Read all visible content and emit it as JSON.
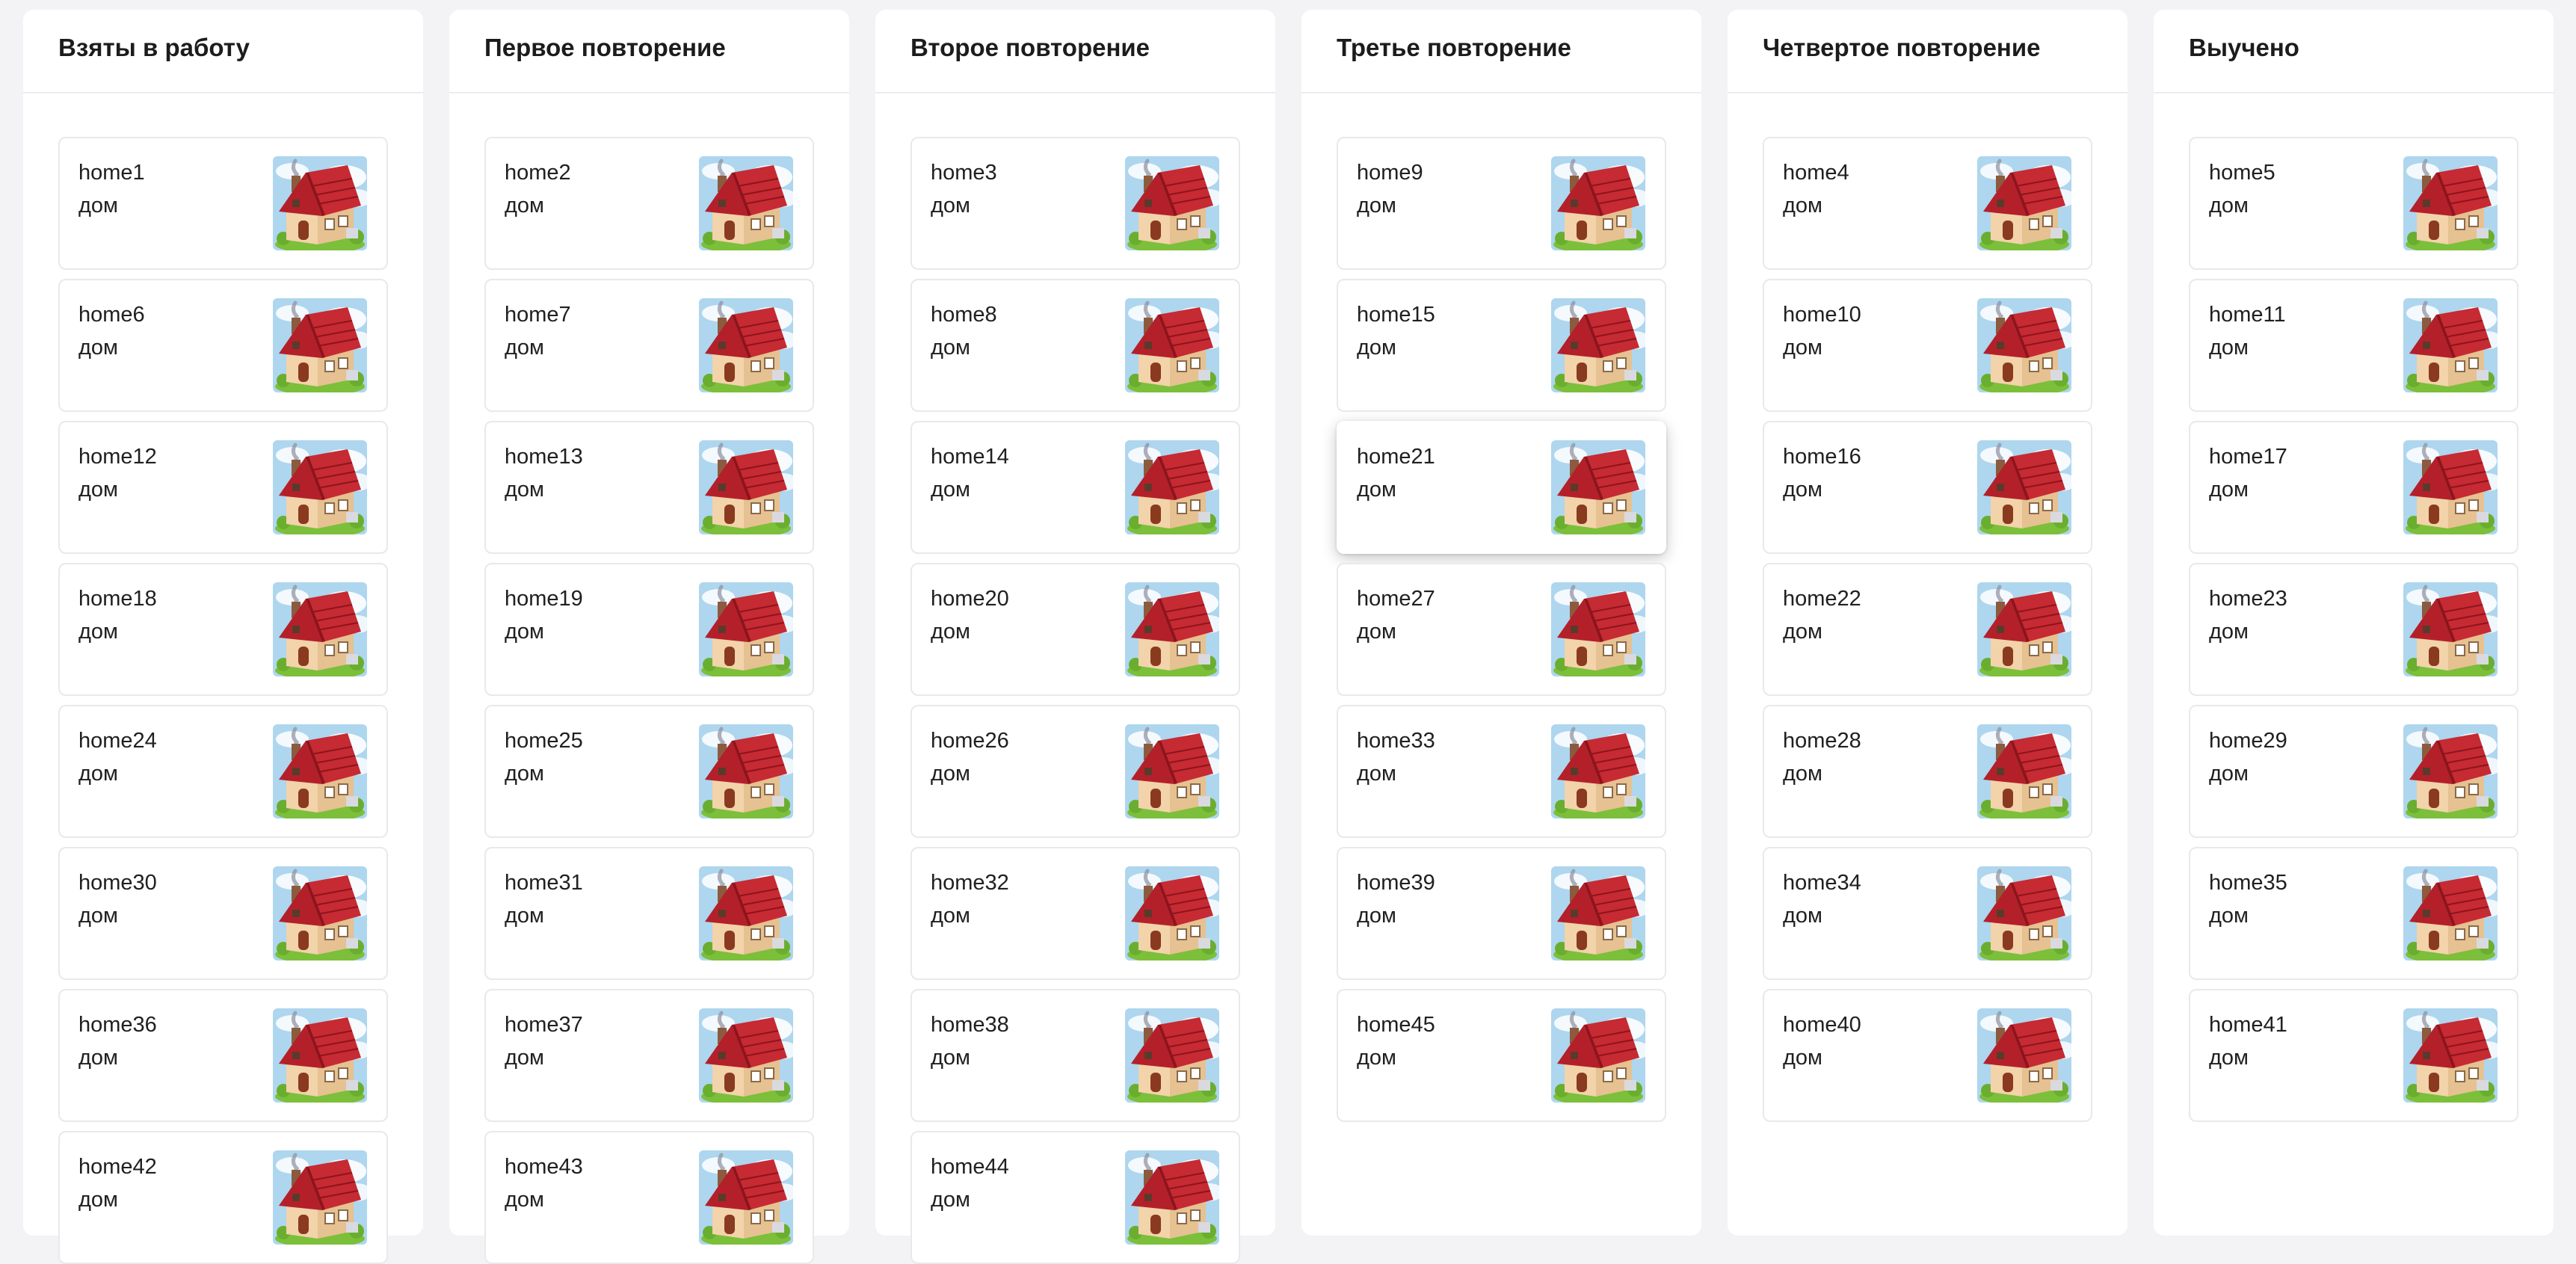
{
  "columns": [
    {
      "title": "Взяты в работу",
      "cards": [
        {
          "word": "home1",
          "translation": "дом"
        },
        {
          "word": "home6",
          "translation": "дом"
        },
        {
          "word": "home12",
          "translation": "дом"
        },
        {
          "word": "home18",
          "translation": "дом"
        },
        {
          "word": "home24",
          "translation": "дом"
        },
        {
          "word": "home30",
          "translation": "дом"
        },
        {
          "word": "home36",
          "translation": "дом"
        },
        {
          "word": "home42",
          "translation": "дом"
        }
      ]
    },
    {
      "title": "Первое повторение",
      "cards": [
        {
          "word": "home2",
          "translation": "дом"
        },
        {
          "word": "home7",
          "translation": "дом"
        },
        {
          "word": "home13",
          "translation": "дом"
        },
        {
          "word": "home19",
          "translation": "дом"
        },
        {
          "word": "home25",
          "translation": "дом"
        },
        {
          "word": "home31",
          "translation": "дом"
        },
        {
          "word": "home37",
          "translation": "дом"
        },
        {
          "word": "home43",
          "translation": "дом"
        }
      ]
    },
    {
      "title": "Второе повторение",
      "cards": [
        {
          "word": "home3",
          "translation": "дом"
        },
        {
          "word": "home8",
          "translation": "дом"
        },
        {
          "word": "home14",
          "translation": "дом"
        },
        {
          "word": "home20",
          "translation": "дом"
        },
        {
          "word": "home26",
          "translation": "дом"
        },
        {
          "word": "home32",
          "translation": "дом"
        },
        {
          "word": "home38",
          "translation": "дом"
        },
        {
          "word": "home44",
          "translation": "дом"
        }
      ]
    },
    {
      "title": "Третье повторение",
      "cards": [
        {
          "word": "home9",
          "translation": "дом"
        },
        {
          "word": "home15",
          "translation": "дом"
        },
        {
          "word": "home21",
          "translation": "дом",
          "dragging": true
        },
        {
          "word": "home27",
          "translation": "дом"
        },
        {
          "word": "home33",
          "translation": "дом"
        },
        {
          "word": "home39",
          "translation": "дом"
        },
        {
          "word": "home45",
          "translation": "дом"
        }
      ]
    },
    {
      "title": "Четвертое повторение",
      "cards": [
        {
          "word": "home4",
          "translation": "дом"
        },
        {
          "word": "home10",
          "translation": "дом"
        },
        {
          "word": "home16",
          "translation": "дом"
        },
        {
          "word": "home22",
          "translation": "дом"
        },
        {
          "word": "home28",
          "translation": "дом"
        },
        {
          "word": "home34",
          "translation": "дом"
        },
        {
          "word": "home40",
          "translation": "дом"
        }
      ]
    },
    {
      "title": "Выучено",
      "cards": [
        {
          "word": "home5",
          "translation": "дом"
        },
        {
          "word": "home11",
          "translation": "дом"
        },
        {
          "word": "home17",
          "translation": "дом"
        },
        {
          "word": "home23",
          "translation": "дом"
        },
        {
          "word": "home29",
          "translation": "дом"
        },
        {
          "word": "home35",
          "translation": "дом"
        },
        {
          "word": "home41",
          "translation": "дом"
        }
      ]
    }
  ],
  "card_image": {
    "icon": "house-icon",
    "roof": "#b3202a",
    "walls": "#f2d3aa",
    "sky": "#a9d4ec",
    "grass": "#7cbf3a"
  }
}
